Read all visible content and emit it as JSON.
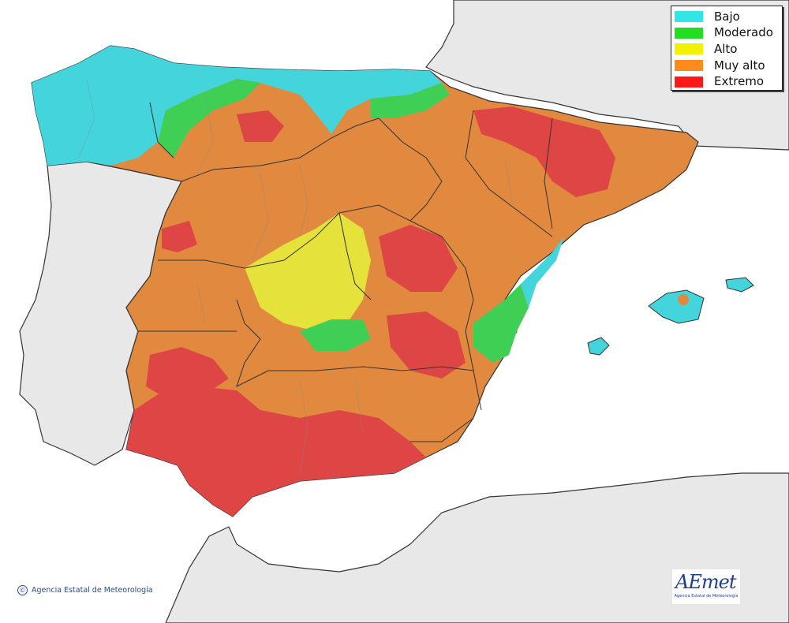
{
  "legend": {
    "items": [
      {
        "label": "Bajo",
        "color": "#33e6e6"
      },
      {
        "label": "Moderado",
        "color": "#22dd22"
      },
      {
        "label": "Alto",
        "color": "#f2f200"
      },
      {
        "label": "Muy alto",
        "color": "#ff8c1a"
      },
      {
        "label": "Extremo",
        "color": "#ff1a1a"
      }
    ]
  },
  "credit": {
    "text": "Agencia Estatal de Meteorología",
    "symbol": "©"
  },
  "logo": {
    "brand": "AEmet",
    "subtitle": "Agencia Estatal de Meteorología"
  },
  "colors": {
    "land_other": "#e8e8e8",
    "sea": "#ffffff",
    "bajo": "#44d4dc",
    "moderado": "#3fcf55",
    "alto": "#e5e23c",
    "muy_alto": "#e0893f",
    "extremo": "#de4646"
  }
}
